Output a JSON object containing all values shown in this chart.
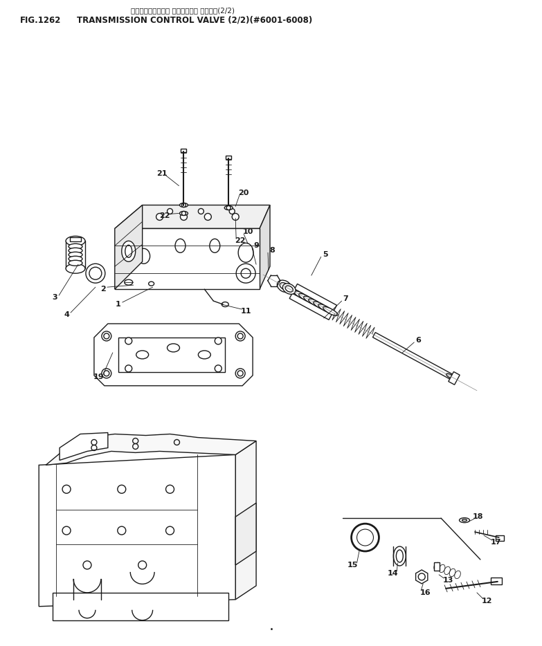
{
  "title_jp": "トランスミッション コントロール バルブ　(2/2)",
  "title_fig": "FIG.1262",
  "title_en": "TRANSMISSION CONTROL VALVE (2/2)(#6001-6008)",
  "bg_color": "#ffffff",
  "line_color": "#1a1a1a",
  "text_color": "#1a1a1a",
  "fig_width": 7.83,
  "fig_height": 9.34
}
